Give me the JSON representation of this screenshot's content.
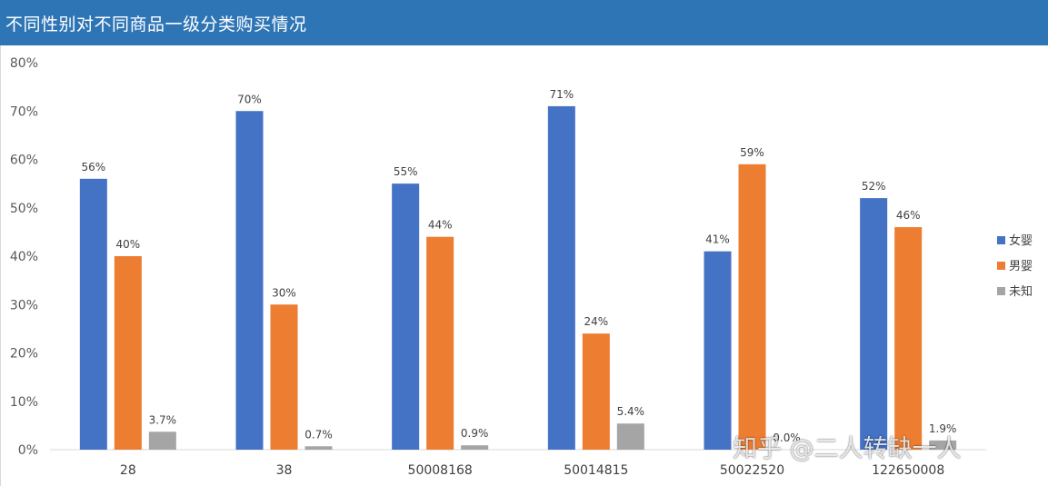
{
  "title": "不同性别对不同商品一级分类购买情况",
  "watermark": "知乎 @二人转缺一人",
  "chart_data": {
    "type": "bar",
    "categories": [
      "28",
      "38",
      "50008168",
      "50014815",
      "50022520",
      "122650008"
    ],
    "series": [
      {
        "name": "女婴",
        "color": "#4472c4",
        "values": [
          56,
          70,
          55,
          71,
          41,
          52
        ],
        "labels": [
          "56%",
          "70%",
          "55%",
          "71%",
          "41%",
          "52%"
        ]
      },
      {
        "name": "男婴",
        "color": "#ed7d31",
        "values": [
          40,
          30,
          44,
          24,
          59,
          46
        ],
        "labels": [
          "40%",
          "30%",
          "44%",
          "24%",
          "59%",
          "46%"
        ]
      },
      {
        "name": "未知",
        "color": "#a5a5a5",
        "values": [
          3.7,
          0.7,
          0.9,
          5.4,
          0.0,
          1.9
        ],
        "labels": [
          "3.7%",
          "0.7%",
          "0.9%",
          "5.4%",
          "0.0%",
          "1.9%"
        ]
      }
    ],
    "y_ticks": [
      "0%",
      "10%",
      "20%",
      "30%",
      "40%",
      "50%",
      "60%",
      "70%",
      "80%"
    ],
    "ylim": [
      0,
      80
    ],
    "grid": false,
    "legend": "right"
  }
}
